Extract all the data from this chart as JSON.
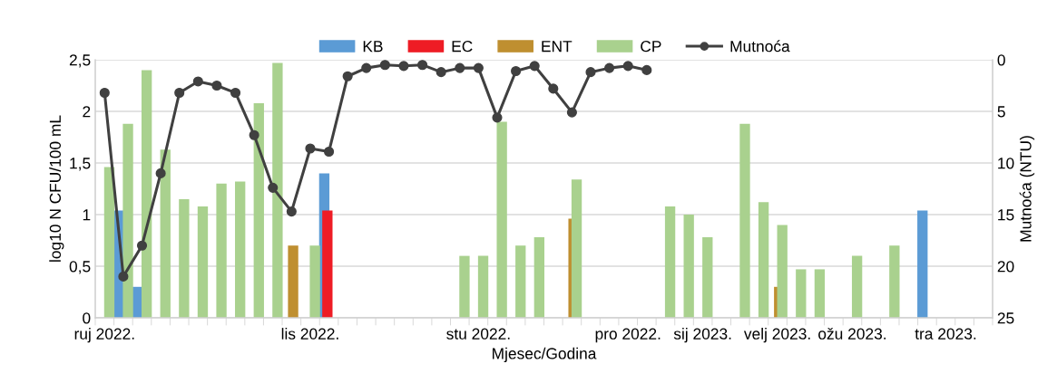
{
  "chart_data": {
    "type": "bar",
    "xlabel": "Mjesec/Godina",
    "ylabel": "log10 N CFU/100 mL",
    "y2label": "Mutnoća (NTU)",
    "categories": [
      "ruj 2022.",
      null,
      null,
      null,
      null,
      null,
      null,
      null,
      null,
      null,
      null,
      "lis 2022.",
      null,
      null,
      null,
      null,
      null,
      null,
      null,
      null,
      "stu 2022.",
      null,
      null,
      null,
      null,
      null,
      null,
      null,
      "pro 2022.",
      null,
      null,
      null,
      "sij 2023.",
      null,
      null,
      null,
      "velj 2023.",
      null,
      null,
      null,
      "ožu 2023.",
      null,
      null,
      null,
      null,
      "tra 2023.",
      null,
      null
    ],
    "series": [
      {
        "name": "KB",
        "color": "#5b9bd5",
        "values": [
          null,
          1.04,
          0.3,
          null,
          null,
          null,
          null,
          null,
          null,
          null,
          null,
          null,
          1.4,
          null,
          null,
          null,
          null,
          null,
          null,
          null,
          null,
          null,
          null,
          null,
          null,
          null,
          null,
          null,
          null,
          null,
          null,
          null,
          null,
          null,
          null,
          null,
          null,
          null,
          null,
          null,
          null,
          null,
          null,
          null,
          1.04,
          null,
          null,
          null
        ]
      },
      {
        "name": "EC",
        "color": "#ee1c25",
        "values": [
          null,
          null,
          null,
          null,
          null,
          null,
          null,
          null,
          null,
          null,
          null,
          null,
          1.04,
          null,
          null,
          null,
          null,
          null,
          null,
          null,
          null,
          null,
          null,
          null,
          null,
          null,
          null,
          null,
          null,
          null,
          null,
          null,
          null,
          null,
          null,
          null,
          null,
          null,
          null,
          null,
          null,
          null,
          null,
          null,
          null,
          null,
          null,
          null
        ]
      },
      {
        "name": "ENT",
        "color": "#bf8f30",
        "values": [
          null,
          null,
          null,
          null,
          null,
          null,
          null,
          null,
          null,
          null,
          0.7,
          null,
          null,
          null,
          null,
          null,
          null,
          null,
          null,
          null,
          null,
          null,
          null,
          null,
          null,
          0.96,
          null,
          null,
          null,
          null,
          null,
          null,
          null,
          null,
          null,
          null,
          0.3,
          null,
          null,
          null,
          null,
          null,
          null,
          null,
          null,
          null,
          null,
          null
        ]
      },
      {
        "name": "CP",
        "color": "#a9d18e",
        "values": [
          1.46,
          1.88,
          2.4,
          1.63,
          1.15,
          1.08,
          1.3,
          1.32,
          2.08,
          2.47,
          null,
          0.7,
          null,
          null,
          null,
          null,
          null,
          null,
          null,
          0.6,
          0.6,
          1.9,
          0.7,
          0.78,
          null,
          1.34,
          null,
          null,
          null,
          null,
          1.08,
          1.0,
          0.78,
          null,
          1.88,
          1.12,
          0.9,
          0.47,
          0.47,
          null,
          0.6,
          null,
          0.7,
          null,
          null,
          null,
          null,
          null
        ]
      },
      {
        "name": "Mutnoća",
        "type": "line",
        "axis": "y2",
        "color": "#404040",
        "values": [
          3.2,
          21.0,
          18.0,
          11.0,
          3.2,
          2.1,
          2.5,
          3.2,
          7.3,
          12.4,
          14.7,
          8.6,
          8.9,
          1.6,
          0.8,
          0.5,
          0.6,
          0.5,
          1.2,
          0.8,
          0.8,
          5.6,
          1.1,
          0.6,
          2.8,
          5.1,
          1.2,
          0.8,
          0.6,
          1.0,
          null,
          null,
          null,
          null,
          null,
          null,
          null,
          null,
          null,
          null,
          null,
          null,
          null,
          null,
          null,
          null,
          null,
          null
        ]
      }
    ],
    "ylim": [
      0,
      2.5
    ],
    "yticks": [
      0,
      {
        "value": 0.5,
        "label": "0,5"
      },
      1,
      {
        "value": 1.5,
        "label": "1,5"
      },
      2,
      {
        "value": 2.5,
        "label": "2,5"
      }
    ],
    "y2lim": [
      25,
      0
    ],
    "y2ticks": [
      0,
      5,
      10,
      15,
      20,
      25
    ],
    "grid": "y",
    "legend": "top right",
    "marker": "circle",
    "line_style": "solid"
  }
}
